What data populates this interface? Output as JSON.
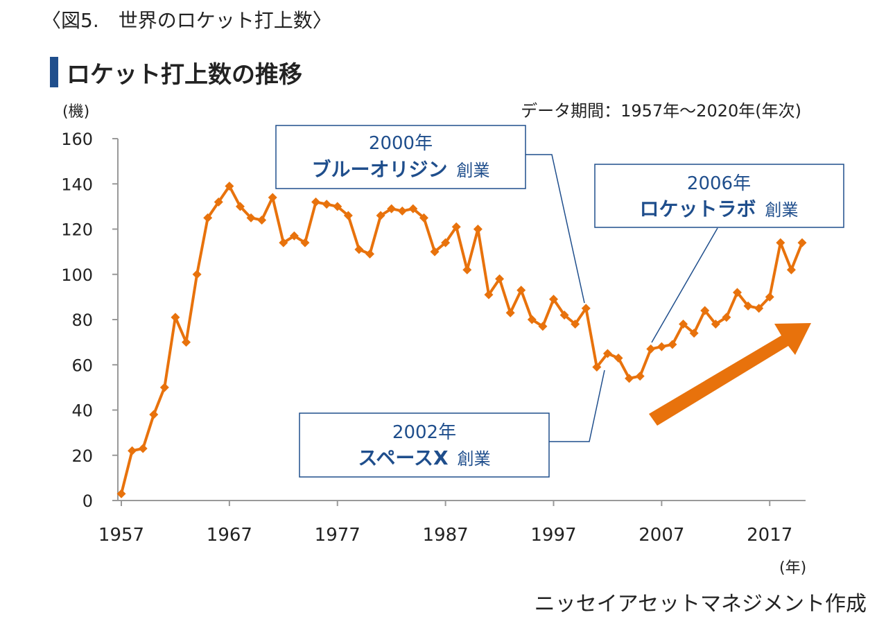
{
  "figure_caption": "〈図5.　世界のロケット打上数〉",
  "credit": "ニッセイアセットマネジメント作成",
  "colors": {
    "series": "#e8720c",
    "annotation": "#1f4e8c",
    "axis": "#999999",
    "title_bar": "#1f4e8c"
  },
  "chart_data": {
    "type": "line",
    "title": "ロケット打上数の推移",
    "ylabel": "(機)",
    "xlabel": "(年)",
    "period_note": "データ期間：1957年～2020年(年次)",
    "ylim": [
      0,
      160
    ],
    "xlim": [
      1957,
      2020
    ],
    "yticks": [
      0,
      20,
      40,
      60,
      80,
      100,
      120,
      140,
      160
    ],
    "xticks": [
      1957,
      1967,
      1977,
      1987,
      1997,
      2007,
      2017
    ],
    "grid": false,
    "marker": "diamond",
    "series": [
      {
        "x": [
          1957,
          1958,
          1959,
          1960,
          1961,
          1962,
          1963,
          1964,
          1965,
          1966,
          1967,
          1968,
          1969,
          1970,
          1971,
          1972,
          1973,
          1974,
          1975,
          1976,
          1977,
          1978,
          1979,
          1980,
          1981,
          1982,
          1983,
          1984,
          1985,
          1986,
          1987,
          1988,
          1989,
          1990,
          1991,
          1992,
          1993,
          1994,
          1995,
          1996,
          1997,
          1998,
          1999,
          2000,
          2001,
          2002,
          2003,
          2004,
          2005,
          2006,
          2007,
          2008,
          2009,
          2010,
          2011,
          2012,
          2013,
          2014,
          2015,
          2016,
          2017,
          2018,
          2019,
          2020
        ],
        "values": [
          3,
          22,
          23,
          38,
          50,
          81,
          70,
          100,
          125,
          132,
          139,
          130,
          125,
          124,
          134,
          114,
          117,
          114,
          132,
          131,
          130,
          126,
          111,
          109,
          126,
          129,
          128,
          129,
          125,
          110,
          114,
          121,
          102,
          120,
          91,
          98,
          83,
          93,
          80,
          77,
          89,
          82,
          78,
          85,
          59,
          65,
          63,
          54,
          55,
          67,
          68,
          69,
          78,
          74,
          84,
          78,
          81,
          92,
          86,
          85,
          90,
          114,
          102,
          114
        ]
      }
    ],
    "annotations": [
      {
        "year_label": "2000年",
        "name": "ブルーオリジン",
        "suffix": "創業",
        "points_to": 2000
      },
      {
        "year_label": "2006年",
        "name": "ロケットラボ",
        "suffix": "創業",
        "points_to": 2006
      },
      {
        "year_label": "2002年",
        "name": "スペースX",
        "suffix": "創業",
        "points_to": 2002
      }
    ],
    "trend_arrow": "up-right"
  }
}
